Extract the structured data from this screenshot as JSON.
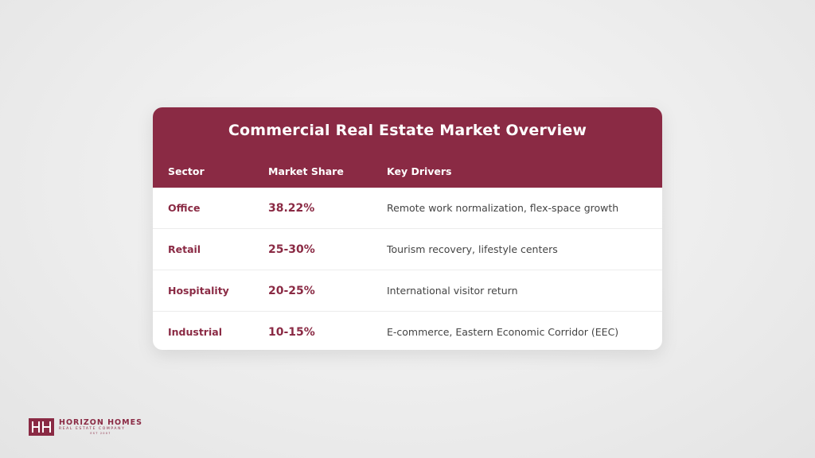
{
  "card": {
    "title": "Commercial Real Estate Market Overview",
    "columns": [
      "Sector",
      "Market Share",
      "Key Drivers"
    ],
    "rows": [
      {
        "sector": "Office",
        "share": "38.22%",
        "drivers": "Remote work normalization, flex-space growth"
      },
      {
        "sector": "Retail",
        "share": "25-30%",
        "drivers": "Tourism recovery, lifestyle centers"
      },
      {
        "sector": "Hospitality",
        "share": "20-25%",
        "drivers": "International visitor return"
      },
      {
        "sector": "Industrial",
        "share": "10-15%",
        "drivers": "E-commerce, Eastern Economic Corridor (EEC)"
      }
    ]
  },
  "logo": {
    "name": "HORIZON HOMES",
    "tagline": "REAL ESTATE COMPANY",
    "est": "EST 2007",
    "icon": "hh-monogram-icon"
  },
  "colors": {
    "accent": "#8a2a44",
    "text": "#444444",
    "background": "#eeeeee"
  }
}
